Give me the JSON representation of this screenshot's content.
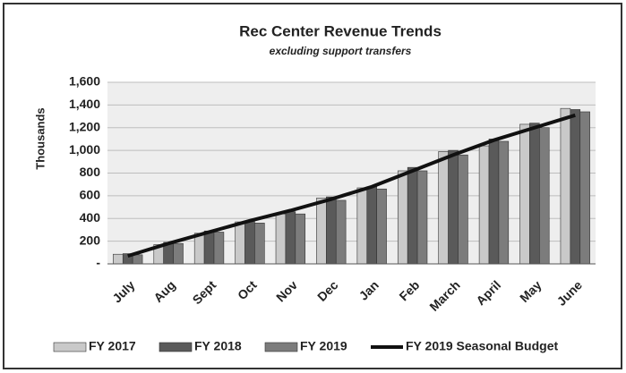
{
  "chart_data": {
    "type": "bar",
    "title": "Rec Center Revenue Trends",
    "subtitle": "excluding support transfers",
    "y_label": "Thousands",
    "categories": [
      "July",
      "Aug",
      "Sept",
      "Oct",
      "Nov",
      "Dec",
      "Jan",
      "Feb",
      "March",
      "April",
      "May",
      "June"
    ],
    "series": [
      {
        "name": "FY 2017",
        "type": "bar",
        "color": "#c9c9c9",
        "values": [
          85,
          170,
          270,
          370,
          440,
          580,
          670,
          820,
          990,
          1040,
          1230,
          1370
        ]
      },
      {
        "name": "FY 2018",
        "type": "bar",
        "color": "#5a5a5a",
        "values": [
          90,
          190,
          290,
          380,
          460,
          590,
          680,
          850,
          1000,
          1100,
          1240,
          1360
        ]
      },
      {
        "name": "FY 2019",
        "type": "bar",
        "color": "#7c7c7c",
        "values": [
          80,
          180,
          280,
          360,
          440,
          560,
          660,
          820,
          960,
          1080,
          1200,
          1340
        ]
      },
      {
        "name": "FY 2019 Seasonal Budget",
        "type": "line",
        "color": "#111111",
        "values": [
          70,
          180,
          280,
          380,
          470,
          570,
          680,
          820,
          960,
          1090,
          1200,
          1310
        ]
      }
    ],
    "ylim": [
      0,
      1600
    ],
    "yticks": [
      {
        "value": 0,
        "label": "-"
      },
      200,
      400,
      600,
      800,
      {
        "value": 1000,
        "label": "1,000"
      },
      {
        "value": 1200,
        "label": "1,200"
      },
      {
        "value": 1400,
        "label": "1,400"
      },
      {
        "value": 1600,
        "label": "1,600"
      }
    ],
    "grid": true,
    "legend": "bottom"
  }
}
